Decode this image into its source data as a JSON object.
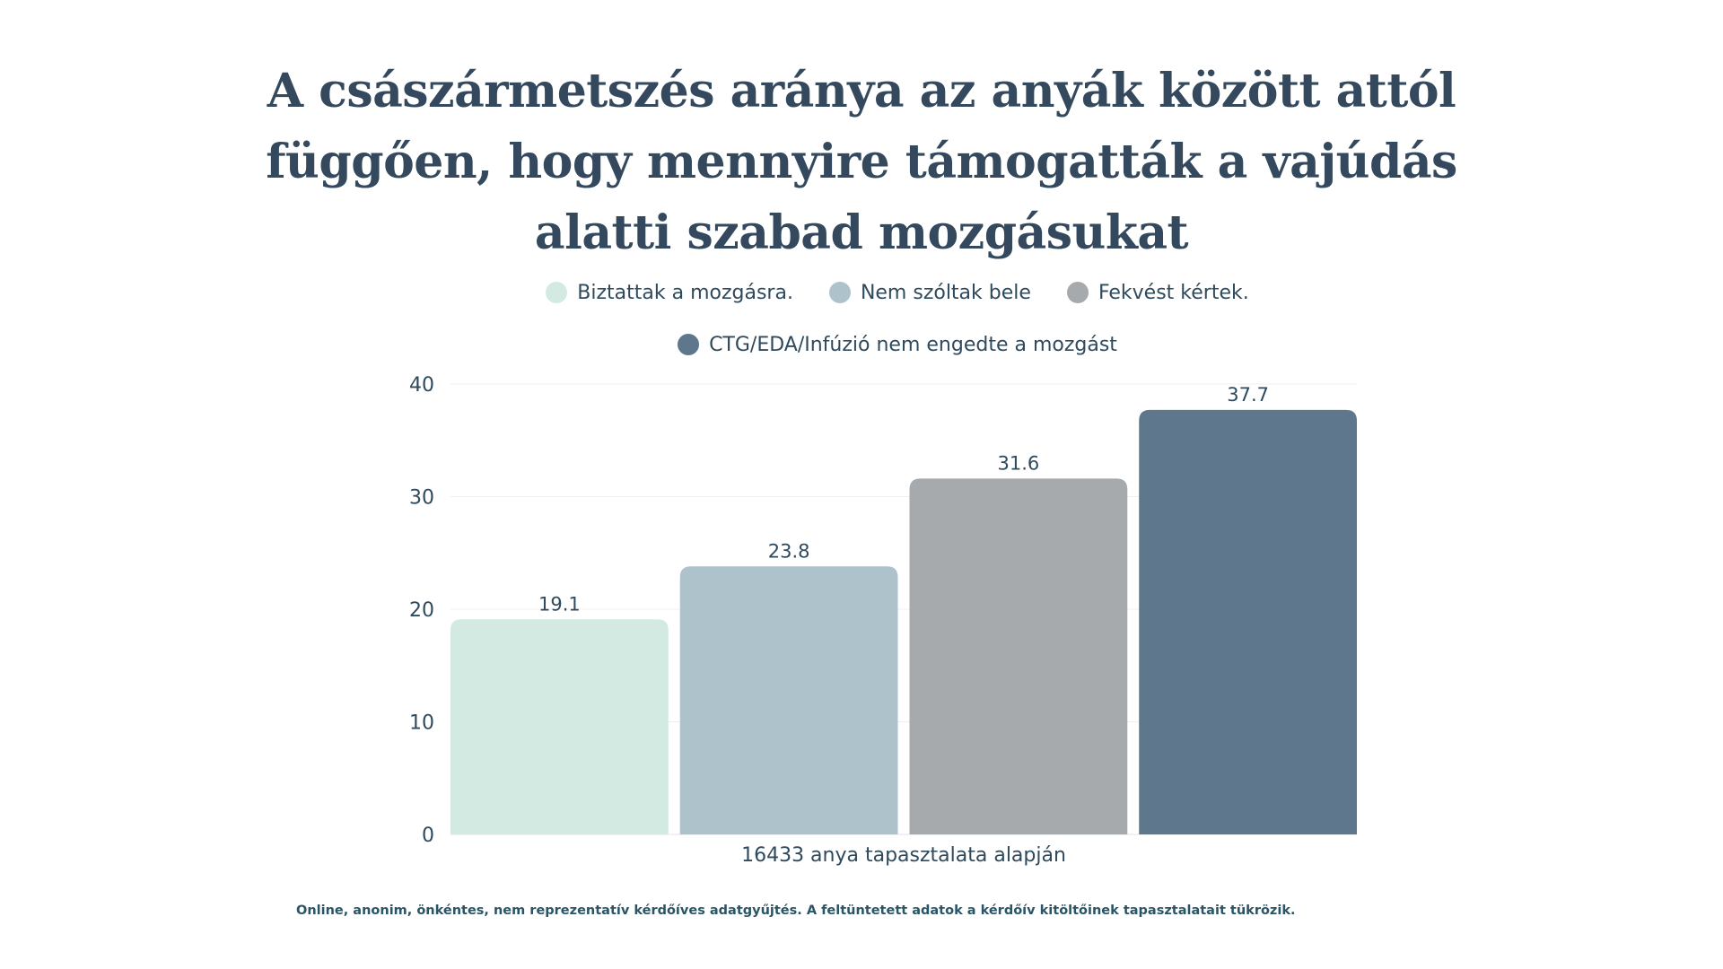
{
  "title": "A császármetszés aránya az anyák között attól függően, hogy mennyire támogatták a vajúdás alatti szabad mozgásukat",
  "footnote": "Online, anonim, önkéntes, nem reprezentatív kérdőíves adatgyűjtés. A feltüntetett adatok a kérdőív kitöltőinek tapasztalatait tükrözik.",
  "chart_data": {
    "type": "bar",
    "categories": [
      "16433 anya tapasztalata alapján"
    ],
    "xlabel": "16433 anya tapasztalata alapján",
    "ylabel": "",
    "ylim": [
      0,
      40
    ],
    "yticks": [
      0,
      10,
      20,
      30,
      40
    ],
    "grid": true,
    "legend_position": "top",
    "series": [
      {
        "name": "Biztattak a mozgásra.",
        "values": [
          19.1
        ],
        "color": "#d3eae2",
        "label": "19.1"
      },
      {
        "name": "Nem szóltak bele",
        "values": [
          23.8
        ],
        "color": "#aec2cc",
        "label": "23.8"
      },
      {
        "name": "Fekvést kértek.",
        "values": [
          31.6
        ],
        "color": "#a6aaad",
        "label": "31.6"
      },
      {
        "name": "CTG/EDA/Infúzió nem engedte a mozgást",
        "values": [
          37.7
        ],
        "color": "#5e778c",
        "label": "37.7"
      }
    ]
  }
}
